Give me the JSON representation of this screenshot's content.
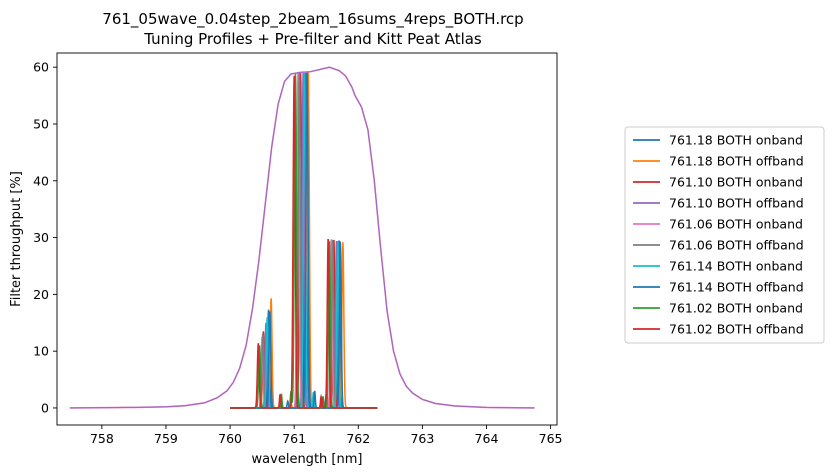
{
  "chart_data": {
    "type": "line",
    "title": "761_05wave_0.04step_2beam_16sums_4reps_BOTH.rcp",
    "subtitle": "Tuning Profiles + Pre-filter and Kitt Peat Atlas",
    "xlabel": "wavelength [nm]",
    "ylabel": "Filter throughput [%]",
    "xlim": [
      757.3,
      765.1
    ],
    "ylim": [
      -3,
      62.5
    ],
    "xticks": [
      758,
      759,
      760,
      761,
      762,
      763,
      764,
      765
    ],
    "yticks": [
      0,
      10,
      20,
      30,
      40,
      50,
      60
    ],
    "grid": false,
    "legend_position": "right",
    "prefilter": {
      "name": "",
      "color": "#9467bd",
      "overlay_color": "#e377c2",
      "x": [
        757.5,
        758.0,
        758.5,
        759.0,
        759.3,
        759.6,
        759.8,
        759.95,
        760.05,
        760.15,
        760.25,
        760.35,
        760.45,
        760.55,
        760.65,
        760.75,
        760.85,
        760.95,
        761.1,
        761.25,
        761.4,
        761.55,
        761.7,
        761.8,
        761.9,
        761.95,
        762.05,
        762.15,
        762.25,
        762.35,
        762.45,
        762.55,
        762.65,
        762.75,
        762.85,
        763.0,
        763.2,
        763.5,
        764.0,
        764.5,
        764.75
      ],
      "y": [
        0.0,
        0.05,
        0.1,
        0.2,
        0.4,
        0.9,
        1.8,
        3.0,
        4.5,
        7.0,
        11.0,
        17.5,
        26.0,
        36.0,
        46.0,
        53.5,
        57.5,
        58.8,
        59.1,
        59.2,
        59.6,
        60.0,
        59.4,
        58.5,
        56.5,
        55.0,
        53.0,
        49.0,
        40.0,
        28.0,
        17.0,
        10.0,
        6.0,
        3.8,
        2.6,
        1.5,
        0.8,
        0.35,
        0.1,
        0.03,
        0.0
      ]
    },
    "series": [
      {
        "name": "761.18 BOTH onband",
        "color": "#1f77b4",
        "center": 761.18,
        "peaks": [
          {
            "x": 761.18,
            "y": 59.0,
            "w": 0.035
          },
          {
            "x": 761.7,
            "y": 29.5,
            "w": 0.03
          },
          {
            "x": 760.6,
            "y": 17.3,
            "w": 0.03
          },
          {
            "x": 761.5,
            "y": 2.5,
            "w": 0.02
          },
          {
            "x": 760.9,
            "y": 1.2,
            "w": 0.02
          }
        ]
      },
      {
        "name": "761.18 BOTH offband",
        "color": "#ff7f0e",
        "center": 761.22,
        "peaks": [
          {
            "x": 761.22,
            "y": 59.2,
            "w": 0.035
          },
          {
            "x": 761.76,
            "y": 29.2,
            "w": 0.03
          },
          {
            "x": 760.64,
            "y": 19.3,
            "w": 0.03
          },
          {
            "x": 761.55,
            "y": 2.2,
            "w": 0.02
          },
          {
            "x": 760.95,
            "y": 1.0,
            "w": 0.02
          }
        ]
      },
      {
        "name": "761.10 BOTH onband",
        "color": "#d62728",
        "center": 761.1,
        "peaks": [
          {
            "x": 761.1,
            "y": 59.0,
            "w": 0.035
          },
          {
            "x": 761.62,
            "y": 29.6,
            "w": 0.03
          },
          {
            "x": 760.52,
            "y": 13.5,
            "w": 0.03
          },
          {
            "x": 761.42,
            "y": 2.0,
            "w": 0.02
          }
        ]
      },
      {
        "name": "761.10 BOTH offband",
        "color": "#9467bd",
        "center": 761.14,
        "peaks": [
          {
            "x": 761.14,
            "y": 59.0,
            "w": 0.035
          },
          {
            "x": 761.66,
            "y": 29.4,
            "w": 0.03
          },
          {
            "x": 760.56,
            "y": 15.0,
            "w": 0.03
          }
        ]
      },
      {
        "name": "761.06 BOTH onband",
        "color": "#e377c2",
        "center": 761.06,
        "peaks": [
          {
            "x": 761.06,
            "y": 59.0,
            "w": 0.035
          },
          {
            "x": 761.58,
            "y": 29.7,
            "w": 0.03
          },
          {
            "x": 760.5,
            "y": 12.5,
            "w": 0.03
          }
        ]
      },
      {
        "name": "761.06 BOTH offband",
        "color": "#7f7f7f",
        "center": 761.08,
        "peaks": [
          {
            "x": 761.08,
            "y": 59.0,
            "w": 0.035
          },
          {
            "x": 761.6,
            "y": 29.6,
            "w": 0.03
          },
          {
            "x": 760.51,
            "y": 13.0,
            "w": 0.03
          }
        ]
      },
      {
        "name": "761.14 BOTH onband",
        "color": "#17becf",
        "center": 761.14,
        "peaks": [
          {
            "x": 761.16,
            "y": 59.0,
            "w": 0.035
          },
          {
            "x": 761.68,
            "y": 29.4,
            "w": 0.03
          },
          {
            "x": 760.58,
            "y": 16.0,
            "w": 0.03
          },
          {
            "x": 761.3,
            "y": 2.8,
            "w": 0.02
          }
        ]
      },
      {
        "name": "761.14 BOTH offband",
        "color": "#1f77b4",
        "center": 761.2,
        "peaks": [
          {
            "x": 761.2,
            "y": 59.2,
            "w": 0.035
          },
          {
            "x": 761.72,
            "y": 29.3,
            "w": 0.03
          },
          {
            "x": 760.62,
            "y": 17.0,
            "w": 0.03
          },
          {
            "x": 761.32,
            "y": 3.0,
            "w": 0.02
          }
        ]
      },
      {
        "name": "761.02 BOTH onband",
        "color": "#2ca02c",
        "center": 761.02,
        "peaks": [
          {
            "x": 761.02,
            "y": 58.8,
            "w": 0.035
          },
          {
            "x": 761.55,
            "y": 29.5,
            "w": 0.03
          },
          {
            "x": 760.46,
            "y": 11.0,
            "w": 0.03
          },
          {
            "x": 760.8,
            "y": 2.5,
            "w": 0.02
          },
          {
            "x": 760.95,
            "y": 2.9,
            "w": 0.02
          },
          {
            "x": 761.45,
            "y": 2.0,
            "w": 0.02
          }
        ]
      },
      {
        "name": "761.02 BOTH offband",
        "color": "#d62728",
        "center": 761.0,
        "peaks": [
          {
            "x": 761.0,
            "y": 58.5,
            "w": 0.035
          },
          {
            "x": 761.53,
            "y": 29.9,
            "w": 0.03
          },
          {
            "x": 760.44,
            "y": 11.4,
            "w": 0.03
          },
          {
            "x": 760.78,
            "y": 2.4,
            "w": 0.02
          },
          {
            "x": 761.43,
            "y": 1.8,
            "w": 0.02
          }
        ]
      }
    ],
    "profile_x_range": [
      760.0,
      762.3
    ]
  }
}
